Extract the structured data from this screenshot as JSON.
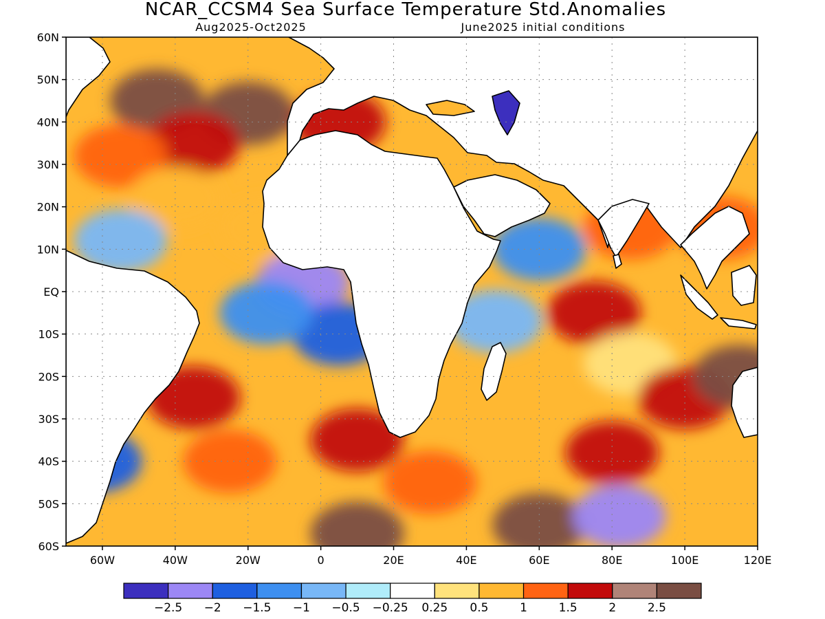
{
  "title": "NCAR_CCSM4 Sea Surface Temperature Std.Anomalies",
  "subtitle_left": "Aug2025-Oct2025",
  "subtitle_right": "June2025 initial conditions",
  "map": {
    "lon_range": [
      -70,
      120
    ],
    "lat_range": [
      -60,
      60
    ],
    "grid": "dotted",
    "lat_ticks": [
      {
        "v": 60,
        "label": "60N"
      },
      {
        "v": 50,
        "label": "50N"
      },
      {
        "v": 40,
        "label": "40N"
      },
      {
        "v": 30,
        "label": "30N"
      },
      {
        "v": 20,
        "label": "20N"
      },
      {
        "v": 10,
        "label": "10N"
      },
      {
        "v": 0,
        "label": "EQ"
      },
      {
        "v": -10,
        "label": "10S"
      },
      {
        "v": -20,
        "label": "20S"
      },
      {
        "v": -30,
        "label": "30S"
      },
      {
        "v": -40,
        "label": "40S"
      },
      {
        "v": -50,
        "label": "50S"
      },
      {
        "v": -60,
        "label": "60S"
      }
    ],
    "lon_ticks": [
      {
        "v": -60,
        "label": "60W"
      },
      {
        "v": -40,
        "label": "40W"
      },
      {
        "v": -20,
        "label": "20W"
      },
      {
        "v": 0,
        "label": "0"
      },
      {
        "v": 20,
        "label": "20E"
      },
      {
        "v": 40,
        "label": "40E"
      },
      {
        "v": 60,
        "label": "60E"
      },
      {
        "v": 80,
        "label": "80E"
      },
      {
        "v": 100,
        "label": "100E"
      },
      {
        "v": 120,
        "label": "120E"
      }
    ]
  },
  "colorbar": {
    "colors": [
      "#3c2fbe",
      "#9c87f5",
      "#1e5fe0",
      "#3d8ff0",
      "#78b7f7",
      "#b0ecfa",
      "#ffffff",
      "#ffe27c",
      "#ffb832",
      "#ff6312",
      "#c20a0a",
      "#b08478",
      "#7a4e43"
    ],
    "labels": [
      "-2.5",
      "-2",
      "-1.5",
      "-1",
      "-0.5",
      "-0.25",
      "0.25",
      "0.5",
      "1",
      "1.5",
      "2",
      "2.5"
    ]
  },
  "chart_data": {
    "type": "heatmap",
    "title": "NCAR_CCSM4 Sea Surface Temperature Std.Anomalies",
    "subtitle": [
      "Aug2025-Oct2025",
      "June2025 initial conditions"
    ],
    "x_range": [
      -70,
      120
    ],
    "y_range": [
      -60,
      60
    ],
    "levels": [
      -2.5,
      -2,
      -1.5,
      -1,
      -0.5,
      -0.25,
      0.25,
      0.5,
      1,
      1.5,
      2,
      2.5
    ],
    "regions": [
      {
        "lon": -45,
        "lat": 45,
        "value": 2.6
      },
      {
        "lon": -20,
        "lat": 42,
        "value": 2.6
      },
      {
        "lon": -35,
        "lat": 35,
        "value": 1.7
      },
      {
        "lon": -55,
        "lat": 32,
        "value": 1.3
      },
      {
        "lon": -15,
        "lat": 15,
        "value": 0.8
      },
      {
        "lon": -40,
        "lat": 22,
        "value": 0.7
      },
      {
        "lon": -55,
        "lat": 12,
        "value": -0.8
      },
      {
        "lon": -5,
        "lat": 2,
        "value": -2.3
      },
      {
        "lon": 5,
        "lat": -10,
        "value": -2.0
      },
      {
        "lon": -15,
        "lat": -5,
        "value": -1.2
      },
      {
        "lon": -35,
        "lat": -25,
        "value": 1.8
      },
      {
        "lon": -25,
        "lat": -40,
        "value": 1.2
      },
      {
        "lon": 10,
        "lat": -35,
        "value": 1.6
      },
      {
        "lon": 30,
        "lat": -45,
        "value": 1.2
      },
      {
        "lon": 10,
        "lat": -57,
        "value": 2.6
      },
      {
        "lon": 60,
        "lat": -55,
        "value": 2.6
      },
      {
        "lon": 60,
        "lat": 10,
        "value": -1.3
      },
      {
        "lon": 48,
        "lat": -7,
        "value": -0.6
      },
      {
        "lon": 75,
        "lat": -5,
        "value": 1.6
      },
      {
        "lon": 85,
        "lat": -17,
        "value": 0.4
      },
      {
        "lon": 100,
        "lat": -25,
        "value": 1.5
      },
      {
        "lon": 115,
        "lat": -20,
        "value": 2.6
      },
      {
        "lon": 85,
        "lat": 15,
        "value": 1.4
      },
      {
        "lon": 110,
        "lat": 15,
        "value": 1.0
      },
      {
        "lon": 80,
        "lat": -38,
        "value": 1.6
      },
      {
        "lon": 82,
        "lat": -53,
        "value": -2.5
      },
      {
        "lon": -62,
        "lat": -40,
        "value": -2.0
      },
      {
        "lon": 5,
        "lat": 40,
        "value": 1.8
      },
      {
        "lon": 50,
        "lat": 42,
        "value": -2.5
      }
    ]
  }
}
